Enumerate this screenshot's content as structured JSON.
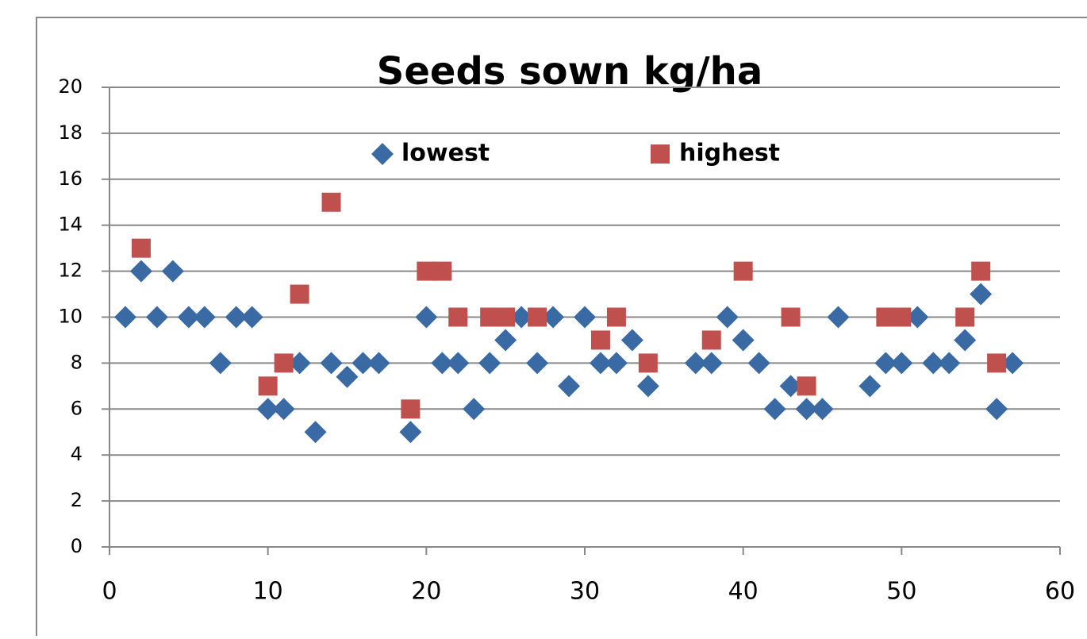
{
  "chart_data": {
    "type": "scatter",
    "title": "Seeds sown kg/ha",
    "xlim": [
      0,
      60
    ],
    "xticks": [
      0,
      10,
      20,
      30,
      40,
      50,
      60
    ],
    "ylim": [
      0,
      20
    ],
    "yticks": [
      0,
      2,
      4,
      6,
      8,
      10,
      12,
      14,
      16,
      18,
      20
    ],
    "grid": true,
    "legend": "top",
    "series": [
      {
        "name": "lowest",
        "color": "#3a6aa4",
        "marker": "diamond",
        "x": [
          1,
          2,
          3,
          4,
          5,
          6,
          7,
          8,
          9,
          10,
          11,
          12,
          13,
          14,
          15,
          16,
          17,
          19,
          20,
          21,
          22,
          23,
          24,
          25,
          26,
          27,
          28,
          29,
          30,
          31,
          32,
          33,
          34,
          37,
          38,
          39,
          40,
          41,
          42,
          43,
          44,
          45,
          46,
          48,
          49,
          50,
          51,
          52,
          53,
          54,
          55,
          56,
          57
        ],
        "values": [
          10,
          12,
          10,
          12,
          10,
          10,
          8,
          10,
          10,
          6,
          6,
          8,
          5,
          8,
          7.4,
          8,
          8,
          5,
          10,
          8,
          8,
          6,
          8,
          9,
          10,
          8,
          10,
          7,
          10,
          8,
          8,
          9,
          7,
          8,
          8,
          10,
          9,
          8,
          6,
          7,
          6,
          6,
          10,
          7,
          8,
          8,
          10,
          8,
          8,
          9,
          11,
          6,
          8
        ]
      },
      {
        "name": "highest",
        "color": "#c0504d",
        "marker": "square",
        "x": [
          2,
          10,
          11,
          12,
          14,
          19,
          20,
          21,
          22,
          24,
          25,
          27,
          31,
          32,
          34,
          38,
          40,
          43,
          44,
          49,
          50,
          54,
          55,
          56
        ],
        "values": [
          13,
          7,
          8,
          11,
          15,
          6,
          12,
          12,
          10,
          10,
          10,
          10,
          9,
          10,
          8,
          9,
          12,
          10,
          7,
          10,
          10,
          10,
          12,
          8
        ]
      }
    ]
  }
}
